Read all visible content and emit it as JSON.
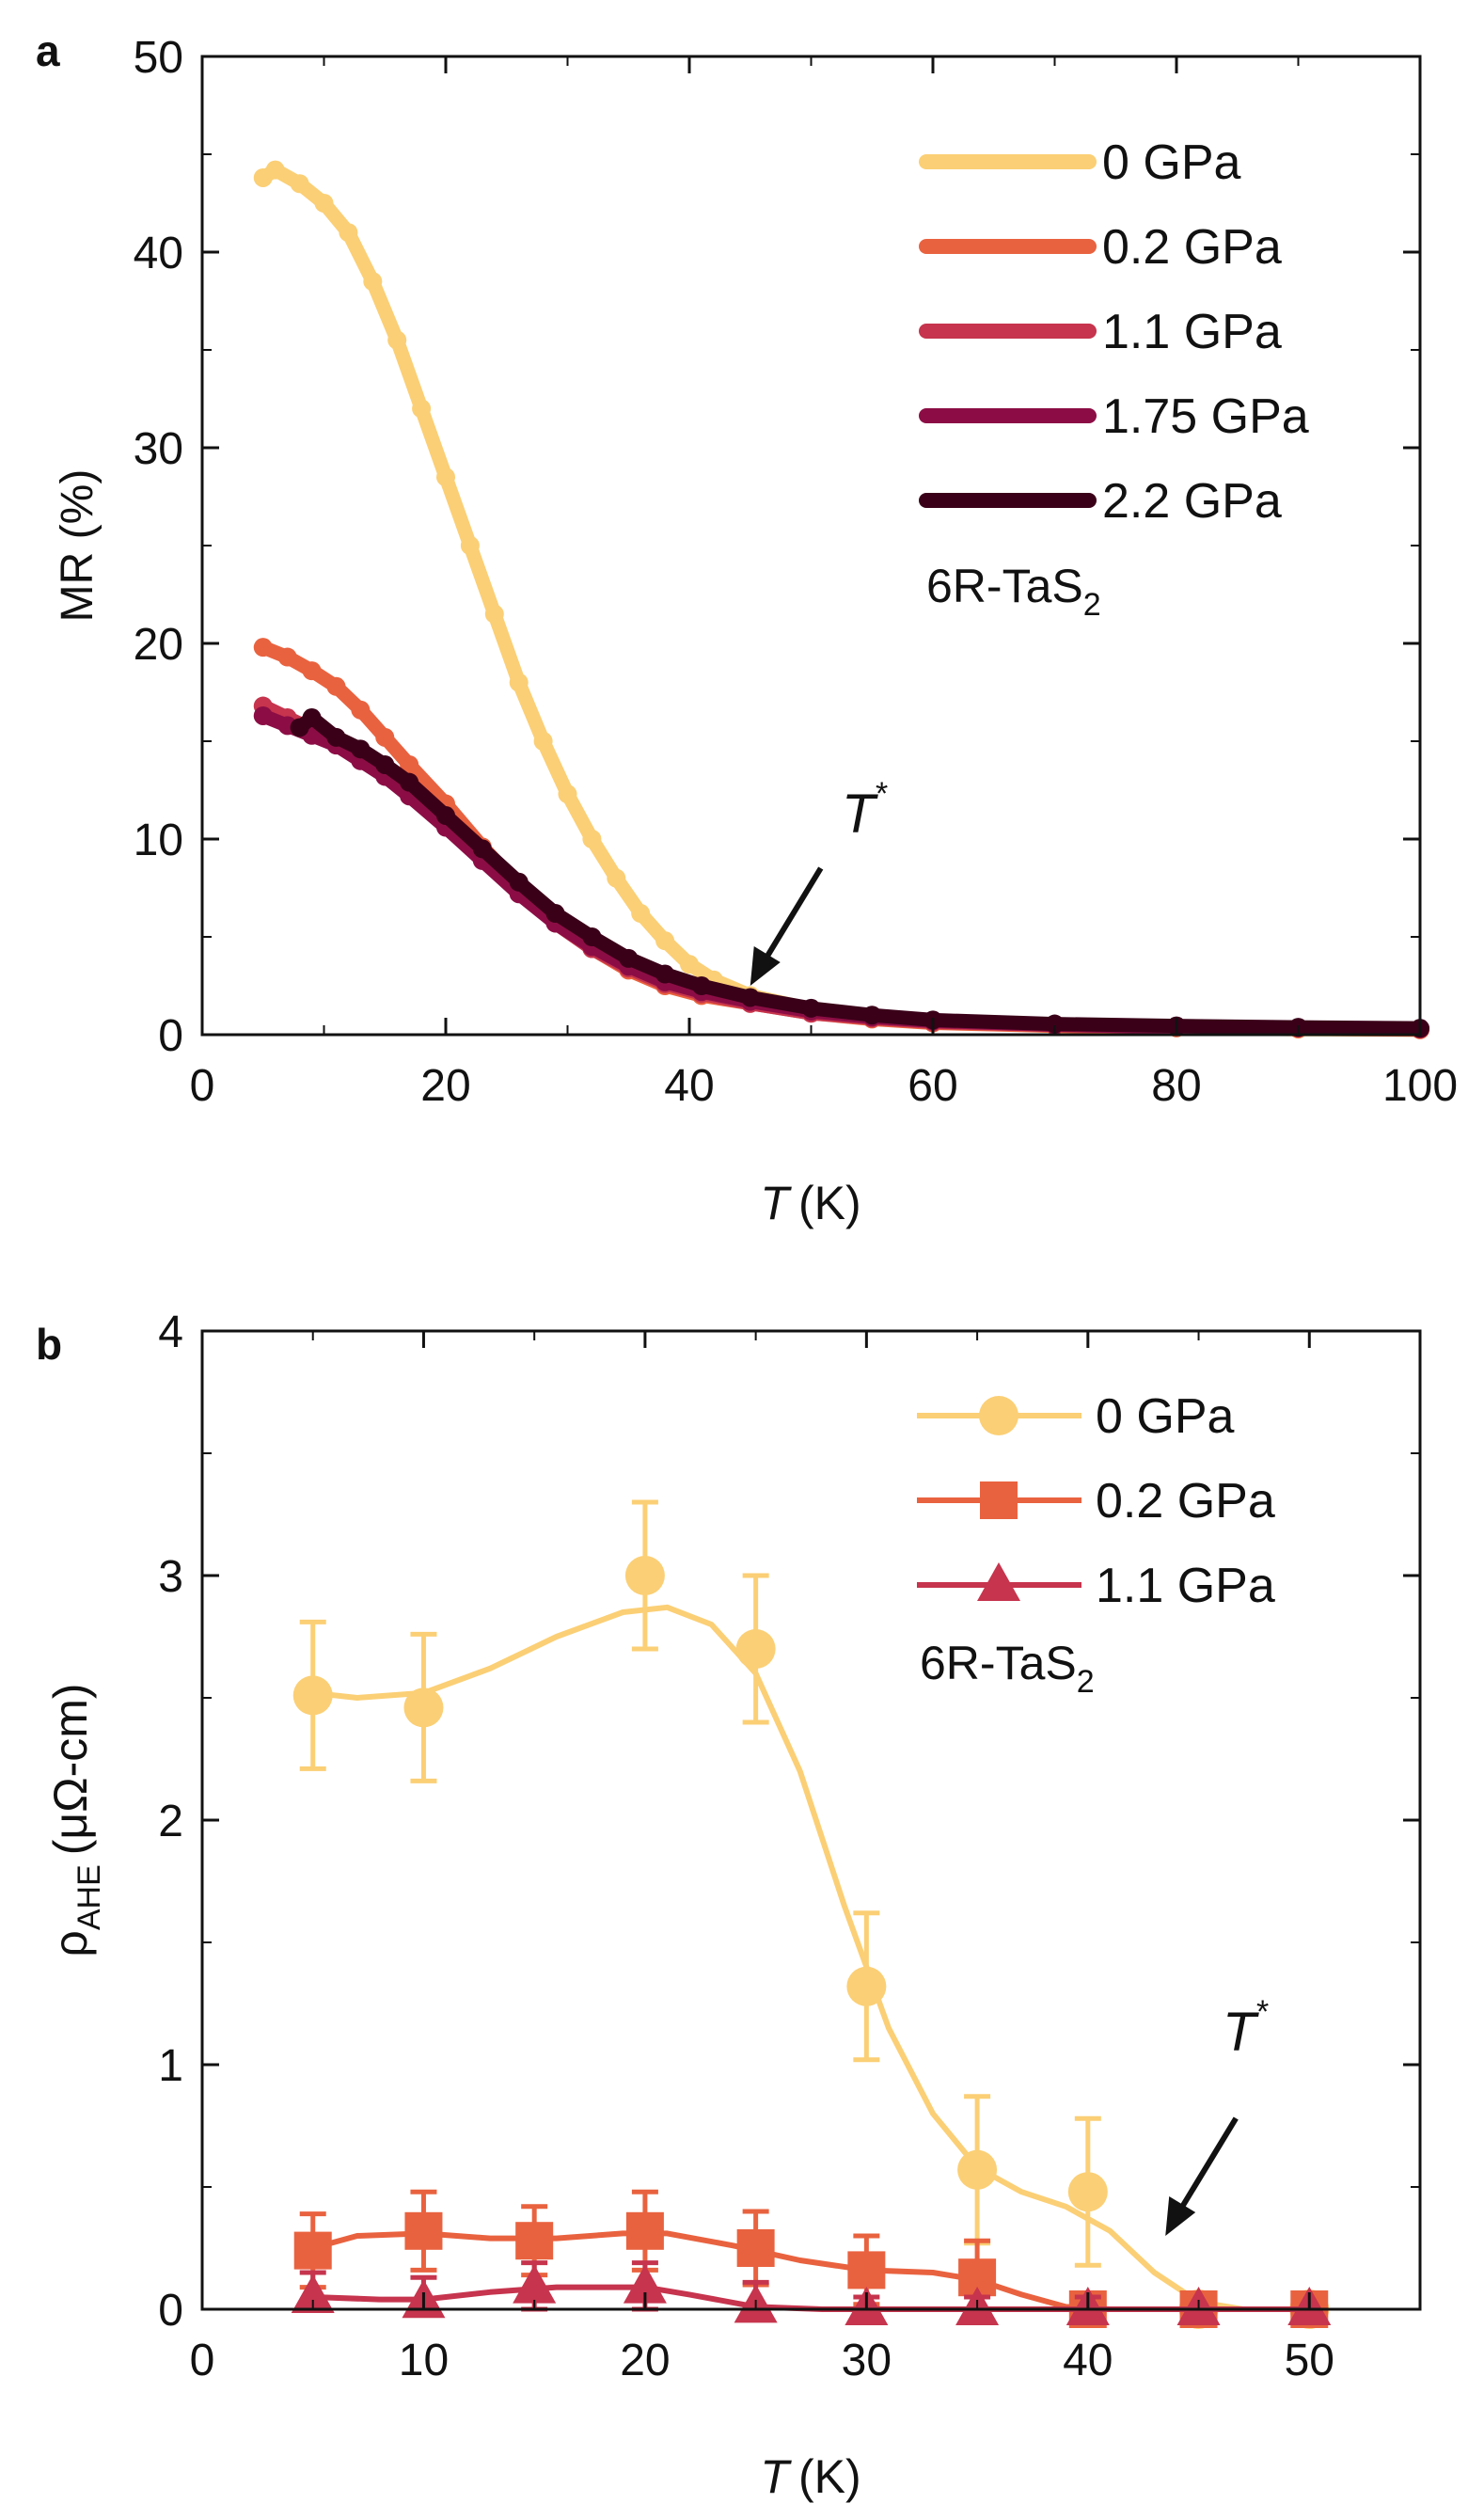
{
  "chart_data": [
    {
      "panel": "a",
      "type": "scatter",
      "xlabel_italic": "T",
      "xlabel_unit": "(K)",
      "ylabel": "MR (%)",
      "xlim": [
        0,
        100
      ],
      "ylim": [
        0,
        50
      ],
      "xticks": [
        0,
        20,
        40,
        60,
        80,
        100
      ],
      "yticks": [
        0,
        10,
        20,
        30,
        40,
        50
      ],
      "annotation": {
        "text": "T",
        "sup": "*",
        "arrow_tip": [
          45,
          2.5
        ]
      },
      "sample_label": "6R-TaS",
      "sample_sub": "2",
      "series": [
        {
          "name": "0 GPa",
          "color": "#fbcf75",
          "points": [
            [
              5,
              43.8
            ],
            [
              6,
              44.2
            ],
            [
              8,
              43.5
            ],
            [
              10,
              42.5
            ],
            [
              12,
              41
            ],
            [
              14,
              38.5
            ],
            [
              16,
              35.5
            ],
            [
              18,
              32
            ],
            [
              20,
              28.5
            ],
            [
              22,
              25
            ],
            [
              24,
              21.5
            ],
            [
              26,
              18
            ],
            [
              28,
              15
            ],
            [
              30,
              12.3
            ],
            [
              32,
              10
            ],
            [
              34,
              8
            ],
            [
              36,
              6.2
            ],
            [
              38,
              4.8
            ],
            [
              40,
              3.6
            ],
            [
              42,
              2.8
            ],
            [
              45,
              2
            ],
            [
              50,
              1.3
            ],
            [
              55,
              0.9
            ],
            [
              60,
              0.65
            ],
            [
              70,
              0.45
            ],
            [
              80,
              0.35
            ],
            [
              90,
              0.28
            ],
            [
              100,
              0.25
            ]
          ]
        },
        {
          "name": "0.2 GPa",
          "color": "#e9623f",
          "points": [
            [
              5,
              19.8
            ],
            [
              7,
              19.3
            ],
            [
              9,
              18.6
            ],
            [
              11,
              17.8
            ],
            [
              13,
              16.6
            ],
            [
              15,
              15.2
            ],
            [
              17,
              13.8
            ],
            [
              20,
              11.8
            ],
            [
              23,
              9.6
            ],
            [
              26,
              7.6
            ],
            [
              29,
              5.8
            ],
            [
              32,
              4.4
            ],
            [
              35,
              3.3
            ],
            [
              38,
              2.5
            ],
            [
              41,
              2
            ],
            [
              45,
              1.6
            ],
            [
              50,
              1.1
            ],
            [
              55,
              0.8
            ],
            [
              60,
              0.6
            ],
            [
              70,
              0.45
            ],
            [
              80,
              0.35
            ],
            [
              90,
              0.3
            ],
            [
              100,
              0.25
            ]
          ]
        },
        {
          "name": "1.1 GPa",
          "color": "#c6344d",
          "points": [
            [
              5,
              16.8
            ],
            [
              7,
              16.2
            ],
            [
              9,
              15.6
            ],
            [
              11,
              15
            ],
            [
              13,
              14.2
            ],
            [
              15,
              13.3
            ],
            [
              17,
              12.3
            ],
            [
              20,
              10.8
            ],
            [
              23,
              9
            ],
            [
              26,
              7.3
            ],
            [
              29,
              5.7
            ],
            [
              32,
              4.4
            ],
            [
              35,
              3.4
            ],
            [
              38,
              2.6
            ],
            [
              41,
              2.1
            ],
            [
              45,
              1.6
            ],
            [
              50,
              1.1
            ],
            [
              55,
              0.85
            ],
            [
              60,
              0.65
            ],
            [
              70,
              0.5
            ],
            [
              80,
              0.4
            ],
            [
              90,
              0.35
            ],
            [
              100,
              0.3
            ]
          ]
        },
        {
          "name": "1.75 GPa",
          "color": "#8c0d45",
          "points": [
            [
              5,
              16.3
            ],
            [
              7,
              15.8
            ],
            [
              9,
              15.3
            ],
            [
              11,
              14.8
            ],
            [
              13,
              14
            ],
            [
              15,
              13.2
            ],
            [
              17,
              12.2
            ],
            [
              20,
              10.6
            ],
            [
              23,
              8.9
            ],
            [
              26,
              7.2
            ],
            [
              29,
              5.7
            ],
            [
              32,
              4.5
            ],
            [
              35,
              3.5
            ],
            [
              38,
              2.7
            ],
            [
              41,
              2.2
            ],
            [
              45,
              1.7
            ],
            [
              50,
              1.2
            ],
            [
              55,
              0.9
            ],
            [
              60,
              0.7
            ],
            [
              70,
              0.5
            ],
            [
              80,
              0.4
            ],
            [
              90,
              0.35
            ],
            [
              100,
              0.3
            ]
          ]
        },
        {
          "name": "2.2 GPa",
          "color": "#3a0018",
          "points": [
            [
              8,
              15.7
            ],
            [
              9,
              16.2
            ],
            [
              11,
              15.2
            ],
            [
              13,
              14.6
            ],
            [
              15,
              13.8
            ],
            [
              17,
              12.9
            ],
            [
              20,
              11.2
            ],
            [
              23,
              9.5
            ],
            [
              26,
              7.8
            ],
            [
              29,
              6.2
            ],
            [
              32,
              5
            ],
            [
              35,
              3.9
            ],
            [
              38,
              3.1
            ],
            [
              41,
              2.5
            ],
            [
              45,
              1.9
            ],
            [
              50,
              1.35
            ],
            [
              55,
              1
            ],
            [
              60,
              0.75
            ],
            [
              70,
              0.55
            ],
            [
              80,
              0.45
            ],
            [
              90,
              0.38
            ],
            [
              100,
              0.33
            ]
          ]
        }
      ]
    },
    {
      "panel": "b",
      "type": "scatter",
      "xlabel_italic": "T",
      "xlabel_unit": "(K)",
      "ylabel_rho": "ρ",
      "ylabel_sub": "AHE",
      "ylabel_unit": "(μΩ-cm)",
      "xlim": [
        0,
        55
      ],
      "ylim": [
        0,
        4
      ],
      "xticks": [
        0,
        10,
        20,
        30,
        40,
        50
      ],
      "yticks": [
        0,
        1,
        2,
        3,
        4
      ],
      "annotation": {
        "text": "T",
        "sup": "*",
        "arrow_tip": [
          43.5,
          0.3
        ]
      },
      "sample_label": "6R-TaS",
      "sample_sub": "2",
      "series": [
        {
          "name": "0 GPa",
          "color": "#fbcf75",
          "marker": "circle",
          "x": [
            5,
            10,
            20,
            25,
            30,
            35,
            40,
            45,
            50
          ],
          "y": [
            2.51,
            2.46,
            3.0,
            2.7,
            1.32,
            0.57,
            0.48,
            0.0,
            0.0
          ],
          "err": [
            0.3,
            0.3,
            0.3,
            0.3,
            0.3,
            0.3,
            0.3,
            0.0,
            0.0
          ],
          "curve": [
            [
              5,
              2.52
            ],
            [
              7,
              2.5
            ],
            [
              10,
              2.52
            ],
            [
              13,
              2.62
            ],
            [
              16,
              2.75
            ],
            [
              19,
              2.85
            ],
            [
              21,
              2.87
            ],
            [
              23,
              2.8
            ],
            [
              25,
              2.6
            ],
            [
              27,
              2.2
            ],
            [
              29,
              1.65
            ],
            [
              31,
              1.15
            ],
            [
              33,
              0.8
            ],
            [
              35,
              0.58
            ],
            [
              37,
              0.48
            ],
            [
              39,
              0.42
            ],
            [
              41,
              0.32
            ],
            [
              43,
              0.15
            ],
            [
              45,
              0.03
            ],
            [
              47,
              0
            ],
            [
              50,
              0
            ]
          ]
        },
        {
          "name": "0.2 GPa",
          "color": "#e9623f",
          "marker": "square",
          "x": [
            5,
            10,
            15,
            20,
            25,
            30,
            35,
            40,
            45,
            50
          ],
          "y": [
            0.24,
            0.32,
            0.28,
            0.32,
            0.25,
            0.16,
            0.13,
            0.0,
            0.0,
            0.0
          ],
          "err": [
            0.15,
            0.16,
            0.14,
            0.16,
            0.15,
            0.14,
            0.15,
            0.0,
            0.0,
            0.0
          ],
          "curve": [
            [
              5,
              0.25
            ],
            [
              7,
              0.3
            ],
            [
              10,
              0.31
            ],
            [
              13,
              0.29
            ],
            [
              16,
              0.29
            ],
            [
              19,
              0.31
            ],
            [
              21,
              0.31
            ],
            [
              24,
              0.26
            ],
            [
              27,
              0.2
            ],
            [
              30,
              0.16
            ],
            [
              33,
              0.15
            ],
            [
              35,
              0.12
            ],
            [
              37,
              0.06
            ],
            [
              39,
              0.01
            ],
            [
              41,
              0
            ],
            [
              50,
              0
            ]
          ]
        },
        {
          "name": "1.1 GPa",
          "color": "#c6344d",
          "marker": "triangle",
          "x": [
            5,
            10,
            15,
            20,
            25,
            30,
            35,
            40,
            45,
            50
          ],
          "y": [
            0.05,
            0.03,
            0.09,
            0.09,
            0.01,
            0.0,
            0.0,
            0.0,
            0.0,
            0.0
          ],
          "err": [
            0.1,
            0.1,
            0.1,
            0.1,
            0.1,
            0.05,
            0.05,
            0.05,
            0.0,
            0.0
          ],
          "curve": [
            [
              5,
              0.05
            ],
            [
              8,
              0.04
            ],
            [
              10,
              0.04
            ],
            [
              13,
              0.07
            ],
            [
              16,
              0.09
            ],
            [
              20,
              0.09
            ],
            [
              22,
              0.06
            ],
            [
              25,
              0.01
            ],
            [
              28,
              0
            ],
            [
              50,
              0
            ]
          ]
        }
      ]
    }
  ],
  "panel_labels": [
    "a",
    "b"
  ]
}
